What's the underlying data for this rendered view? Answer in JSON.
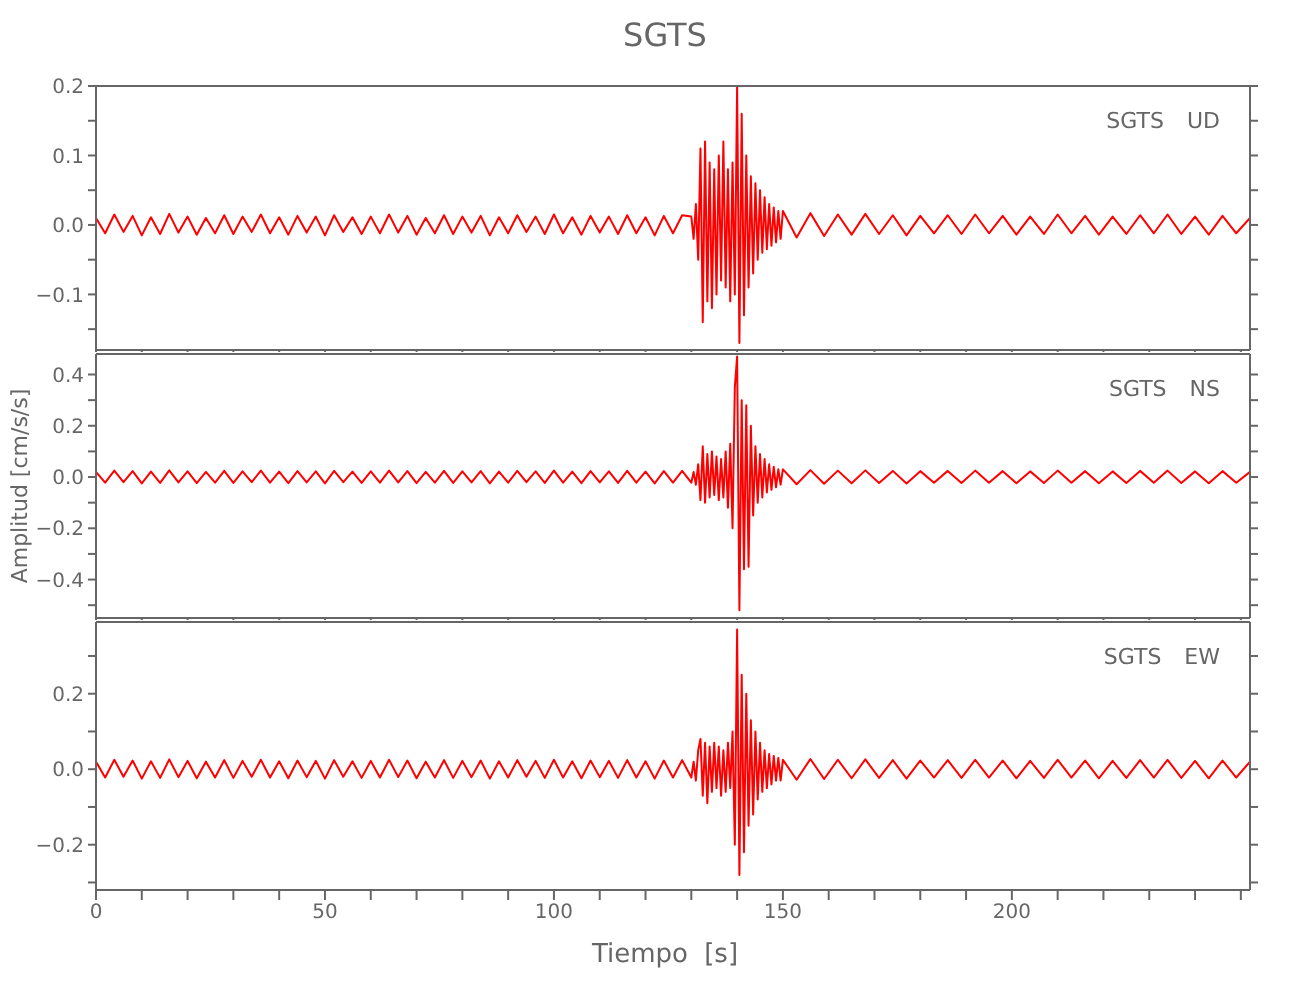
{
  "chart_data": [
    {
      "type": "line",
      "title": "SGTS",
      "annotations": [
        "SGTS UD"
      ],
      "tick_labels": "y",
      "x": [
        0,
        2,
        4,
        6,
        8,
        10,
        12,
        14,
        16,
        18,
        20,
        22,
        24,
        26,
        28,
        30,
        32,
        34,
        36,
        38,
        40,
        42,
        44,
        46,
        48,
        50,
        52,
        54,
        56,
        58,
        60,
        62,
        64,
        66,
        68,
        70,
        72,
        74,
        76,
        78,
        80,
        82,
        84,
        86,
        88,
        90,
        92,
        94,
        96,
        98,
        100,
        102,
        104,
        106,
        108,
        110,
        112,
        114,
        116,
        118,
        120,
        122,
        124,
        126,
        128,
        130,
        130.5,
        131,
        131.5,
        132,
        132.5,
        133,
        133.5,
        134,
        134.5,
        135,
        135.5,
        136,
        136.5,
        137,
        137.5,
        138,
        138.5,
        139,
        139.5,
        140,
        140.5,
        141,
        141.5,
        142,
        142.5,
        143,
        143.5,
        144,
        144.5,
        145,
        145.5,
        146,
        146.5,
        147,
        147.5,
        148,
        148.5,
        149,
        149.5,
        150,
        153,
        156,
        159,
        162,
        165,
        168,
        171,
        174,
        177,
        180,
        183,
        186,
        189,
        192,
        195,
        198,
        201,
        204,
        207,
        210,
        213,
        216,
        219,
        222,
        225,
        228,
        231,
        234,
        237,
        240,
        243,
        246,
        249,
        252
      ],
      "series": [
        {
          "color": "#ff0000",
          "values": [
            0.01,
            -0.012,
            0.015,
            -0.01,
            0.013,
            -0.015,
            0.011,
            -0.013,
            0.016,
            -0.011,
            0.012,
            -0.014,
            0.01,
            -0.012,
            0.014,
            -0.013,
            0.012,
            -0.01,
            0.015,
            -0.012,
            0.011,
            -0.014,
            0.013,
            -0.011,
            0.012,
            -0.015,
            0.014,
            -0.01,
            0.011,
            -0.013,
            0.012,
            -0.012,
            0.015,
            -0.011,
            0.013,
            -0.014,
            0.01,
            -0.012,
            0.014,
            -0.013,
            0.012,
            -0.011,
            0.013,
            -0.015,
            0.011,
            -0.012,
            0.014,
            -0.01,
            0.012,
            -0.013,
            0.015,
            -0.012,
            0.011,
            -0.014,
            0.013,
            -0.011,
            0.012,
            -0.013,
            0.014,
            -0.012,
            0.011,
            -0.015,
            0.013,
            -0.012,
            0.014,
            0.012,
            -0.02,
            0.03,
            -0.05,
            0.11,
            -0.14,
            0.12,
            -0.11,
            0.09,
            -0.12,
            0.08,
            -0.1,
            0.1,
            -0.08,
            0.12,
            -0.09,
            0.08,
            -0.11,
            0.09,
            -0.1,
            0.2,
            -0.17,
            0.16,
            -0.13,
            0.1,
            -0.09,
            0.07,
            -0.07,
            0.06,
            -0.05,
            0.05,
            -0.04,
            0.04,
            -0.035,
            0.03,
            -0.03,
            0.025,
            -0.025,
            0.02,
            -0.02,
            0.02,
            -0.018,
            0.017,
            -0.016,
            0.015,
            -0.014,
            0.016,
            -0.013,
            0.014,
            -0.015,
            0.013,
            -0.012,
            0.014,
            -0.013,
            0.015,
            -0.012,
            0.013,
            -0.014,
            0.012,
            -0.013,
            0.015,
            -0.012,
            0.013,
            -0.014,
            0.012,
            -0.013,
            0.014,
            -0.012,
            0.015,
            -0.013,
            0.012,
            -0.014,
            0.013,
            -0.012,
            0.01
          ]
        }
      ],
      "xlim": [
        0,
        252
      ],
      "xticks": [
        0,
        {
          "value": 10,
          "label": null
        },
        {
          "value": 20,
          "label": null
        },
        {
          "value": 30,
          "label": null
        },
        {
          "value": 40,
          "label": null
        },
        50,
        {
          "value": 60,
          "label": null
        },
        {
          "value": 70,
          "label": null
        },
        {
          "value": 80,
          "label": null
        },
        {
          "value": 90,
          "label": null
        },
        100,
        {
          "value": 110,
          "label": null
        },
        {
          "value": 120,
          "label": null
        },
        {
          "value": 130,
          "label": null
        },
        {
          "value": 140,
          "label": null
        },
        150,
        {
          "value": 160,
          "label": null
        },
        {
          "value": 170,
          "label": null
        },
        {
          "value": 180,
          "label": null
        },
        {
          "value": 190,
          "label": null
        },
        200,
        {
          "value": 210,
          "label": null
        },
        {
          "value": 220,
          "label": null
        },
        {
          "value": 230,
          "label": null
        },
        {
          "value": 240,
          "label": null
        },
        {
          "value": 250,
          "label": null
        }
      ],
      "ylim": [
        -0.18,
        0.2
      ],
      "yticks": [
        {
          "value": -0.15,
          "label": null
        },
        -0.1,
        {
          "value": -0.05,
          "label": null
        },
        {
          "value": 0,
          "label": "0.0"
        },
        {
          "value": 0.05,
          "label": null
        },
        0.1,
        {
          "value": 0.15,
          "label": null
        },
        0.2
      ]
    },
    {
      "type": "line",
      "ylabel": "Amplitud [cm/s/s]",
      "annotations": [
        "SGTS NS"
      ],
      "tick_labels": "y",
      "x": [
        0,
        2,
        4,
        6,
        8,
        10,
        12,
        14,
        16,
        18,
        20,
        22,
        24,
        26,
        28,
        30,
        32,
        34,
        36,
        38,
        40,
        42,
        44,
        46,
        48,
        50,
        52,
        54,
        56,
        58,
        60,
        62,
        64,
        66,
        68,
        70,
        72,
        74,
        76,
        78,
        80,
        82,
        84,
        86,
        88,
        90,
        92,
        94,
        96,
        98,
        100,
        102,
        104,
        106,
        108,
        110,
        112,
        114,
        116,
        118,
        120,
        122,
        124,
        126,
        128,
        130,
        130.5,
        131,
        131.5,
        132,
        132.5,
        133,
        133.5,
        134,
        134.5,
        135,
        135.5,
        136,
        136.5,
        137,
        137.5,
        138,
        138.5,
        139,
        139.5,
        140,
        140.5,
        141,
        141.5,
        142,
        142.5,
        143,
        143.5,
        144,
        144.5,
        145,
        145.5,
        146,
        146.5,
        147,
        147.5,
        148,
        148.5,
        149,
        149.5,
        150,
        153,
        156,
        159,
        162,
        165,
        168,
        171,
        174,
        177,
        180,
        183,
        186,
        189,
        192,
        195,
        198,
        201,
        204,
        207,
        210,
        213,
        216,
        219,
        222,
        225,
        228,
        231,
        234,
        237,
        240,
        243,
        246,
        249,
        252
      ],
      "series": [
        {
          "color": "#ff0000",
          "values": [
            0.02,
            -0.022,
            0.025,
            -0.02,
            0.023,
            -0.025,
            0.021,
            -0.023,
            0.026,
            -0.021,
            0.022,
            -0.024,
            0.02,
            -0.022,
            0.024,
            -0.023,
            0.022,
            -0.02,
            0.025,
            -0.022,
            0.021,
            -0.024,
            0.023,
            -0.021,
            0.022,
            -0.025,
            0.024,
            -0.02,
            0.021,
            -0.023,
            0.022,
            -0.022,
            0.025,
            -0.021,
            0.023,
            -0.024,
            0.02,
            -0.022,
            0.024,
            -0.023,
            0.022,
            -0.021,
            0.023,
            -0.025,
            0.021,
            -0.022,
            0.024,
            -0.02,
            0.022,
            -0.023,
            0.025,
            -0.022,
            0.021,
            -0.024,
            0.023,
            -0.021,
            0.022,
            -0.023,
            0.024,
            -0.022,
            0.021,
            -0.025,
            0.023,
            -0.022,
            0.024,
            -0.022,
            0.02,
            -0.03,
            0.05,
            -0.09,
            0.12,
            -0.1,
            0.09,
            -0.08,
            0.1,
            -0.07,
            0.08,
            -0.09,
            0.07,
            -0.08,
            0.1,
            -0.12,
            0.13,
            -0.2,
            0.35,
            0.47,
            -0.52,
            0.3,
            -0.36,
            0.28,
            -0.35,
            0.2,
            -0.15,
            0.12,
            -0.1,
            0.09,
            -0.08,
            0.07,
            -0.06,
            0.05,
            -0.05,
            0.04,
            -0.04,
            0.03,
            -0.03,
            0.03,
            -0.028,
            0.027,
            -0.026,
            0.025,
            -0.024,
            0.026,
            -0.023,
            0.024,
            -0.025,
            0.023,
            -0.022,
            0.024,
            -0.023,
            0.025,
            -0.022,
            0.023,
            -0.024,
            0.022,
            -0.023,
            0.025,
            -0.022,
            0.023,
            -0.024,
            0.022,
            -0.023,
            0.024,
            -0.022,
            0.025,
            -0.023,
            0.022,
            -0.024,
            0.023,
            -0.022,
            0.02
          ]
        }
      ],
      "xlim": [
        0,
        252
      ],
      "xticks": [
        0,
        {
          "value": 10,
          "label": null
        },
        {
          "value": 20,
          "label": null
        },
        {
          "value": 30,
          "label": null
        },
        {
          "value": 40,
          "label": null
        },
        50,
        {
          "value": 60,
          "label": null
        },
        {
          "value": 70,
          "label": null
        },
        {
          "value": 80,
          "label": null
        },
        {
          "value": 90,
          "label": null
        },
        100,
        {
          "value": 110,
          "label": null
        },
        {
          "value": 120,
          "label": null
        },
        {
          "value": 130,
          "label": null
        },
        {
          "value": 140,
          "label": null
        },
        150,
        {
          "value": 160,
          "label": null
        },
        {
          "value": 170,
          "label": null
        },
        {
          "value": 180,
          "label": null
        },
        {
          "value": 190,
          "label": null
        },
        200,
        {
          "value": 210,
          "label": null
        },
        {
          "value": 220,
          "label": null
        },
        {
          "value": 230,
          "label": null
        },
        {
          "value": 240,
          "label": null
        },
        {
          "value": 250,
          "label": null
        }
      ],
      "ylim": [
        -0.55,
        0.48
      ],
      "yticks": [
        {
          "value": -0.5,
          "label": null
        },
        -0.4,
        {
          "value": -0.3,
          "label": null
        },
        -0.2,
        {
          "value": -0.1,
          "label": null
        },
        {
          "value": 0,
          "label": "0.0"
        },
        {
          "value": 0.1,
          "label": null
        },
        0.2,
        {
          "value": 0.3,
          "label": null
        },
        0.4
      ]
    },
    {
      "type": "line",
      "xlabel": "Tiempo [s]",
      "annotations": [
        "SGTS EW"
      ],
      "x": [
        0,
        2,
        4,
        6,
        8,
        10,
        12,
        14,
        16,
        18,
        20,
        22,
        24,
        26,
        28,
        30,
        32,
        34,
        36,
        38,
        40,
        42,
        44,
        46,
        48,
        50,
        52,
        54,
        56,
        58,
        60,
        62,
        64,
        66,
        68,
        70,
        72,
        74,
        76,
        78,
        80,
        82,
        84,
        86,
        88,
        90,
        92,
        94,
        96,
        98,
        100,
        102,
        104,
        106,
        108,
        110,
        112,
        114,
        116,
        118,
        120,
        122,
        124,
        126,
        128,
        130,
        130.5,
        131,
        131.5,
        132,
        132.5,
        133,
        133.5,
        134,
        134.5,
        135,
        135.5,
        136,
        136.5,
        137,
        137.5,
        138,
        138.5,
        139,
        139.5,
        140,
        140.5,
        141,
        141.5,
        142,
        142.5,
        143,
        143.5,
        144,
        144.5,
        145,
        145.5,
        146,
        146.5,
        147,
        147.5,
        148,
        148.5,
        149,
        149.5,
        150,
        153,
        156,
        159,
        162,
        165,
        168,
        171,
        174,
        177,
        180,
        183,
        186,
        189,
        192,
        195,
        198,
        201,
        204,
        207,
        210,
        213,
        216,
        219,
        222,
        225,
        228,
        231,
        234,
        237,
        240,
        243,
        246,
        249,
        252
      ],
      "series": [
        {
          "color": "#ff0000",
          "values": [
            0.02,
            -0.022,
            0.025,
            -0.02,
            0.023,
            -0.025,
            0.021,
            -0.023,
            0.026,
            -0.021,
            0.022,
            -0.024,
            0.02,
            -0.022,
            0.024,
            -0.023,
            0.022,
            -0.02,
            0.025,
            -0.022,
            0.021,
            -0.024,
            0.023,
            -0.021,
            0.022,
            -0.025,
            0.024,
            -0.02,
            0.021,
            -0.023,
            0.022,
            -0.022,
            0.025,
            -0.021,
            0.023,
            -0.024,
            0.02,
            -0.022,
            0.024,
            -0.023,
            0.022,
            -0.021,
            0.023,
            -0.025,
            0.021,
            -0.022,
            0.024,
            -0.02,
            0.022,
            -0.023,
            0.025,
            -0.022,
            0.021,
            -0.024,
            0.023,
            -0.021,
            0.022,
            -0.023,
            0.024,
            -0.022,
            0.021,
            -0.025,
            0.023,
            -0.022,
            0.024,
            -0.022,
            0.02,
            -0.03,
            0.05,
            0.08,
            -0.07,
            0.07,
            -0.09,
            0.06,
            -0.06,
            0.07,
            -0.05,
            0.06,
            -0.07,
            0.05,
            -0.06,
            0.07,
            -0.05,
            0.1,
            -0.2,
            0.37,
            -0.28,
            0.25,
            -0.22,
            0.2,
            -0.15,
            0.13,
            -0.12,
            0.1,
            -0.08,
            0.07,
            -0.06,
            0.05,
            -0.05,
            0.04,
            -0.04,
            0.035,
            -0.03,
            0.03,
            -0.03,
            0.025,
            -0.028,
            0.027,
            -0.026,
            0.025,
            -0.024,
            0.026,
            -0.023,
            0.024,
            -0.025,
            0.023,
            -0.022,
            0.024,
            -0.023,
            0.025,
            -0.022,
            0.023,
            -0.024,
            0.022,
            -0.023,
            0.025,
            -0.022,
            0.023,
            -0.024,
            0.022,
            -0.023,
            0.024,
            -0.022,
            0.025,
            -0.023,
            0.022,
            -0.024,
            0.023,
            -0.022,
            0.02
          ]
        }
      ],
      "xlim": [
        0,
        252
      ],
      "xticks": [
        0,
        {
          "value": 10,
          "label": null
        },
        {
          "value": 20,
          "label": null
        },
        {
          "value": 30,
          "label": null
        },
        {
          "value": 40,
          "label": null
        },
        50,
        {
          "value": 60,
          "label": null
        },
        {
          "value": 70,
          "label": null
        },
        {
          "value": 80,
          "label": null
        },
        {
          "value": 90,
          "label": null
        },
        100,
        {
          "value": 110,
          "label": null
        },
        {
          "value": 120,
          "label": null
        },
        {
          "value": 130,
          "label": null
        },
        {
          "value": 140,
          "label": null
        },
        150,
        {
          "value": 160,
          "label": null
        },
        {
          "value": 170,
          "label": null
        },
        {
          "value": 180,
          "label": null
        },
        {
          "value": 190,
          "label": null
        },
        200,
        {
          "value": 210,
          "label": null
        },
        {
          "value": 220,
          "label": null
        },
        {
          "value": 230,
          "label": null
        },
        {
          "value": 240,
          "label": null
        },
        {
          "value": 250,
          "label": null
        }
      ],
      "ylim": [
        -0.32,
        0.39
      ],
      "yticks": [
        {
          "value": -0.3,
          "label": null
        },
        -0.2,
        {
          "value": -0.1,
          "label": null
        },
        {
          "value": 0,
          "label": "0.0"
        },
        {
          "value": 0.1,
          "label": null
        },
        0.2,
        {
          "value": 0.3,
          "label": null
        }
      ]
    }
  ]
}
